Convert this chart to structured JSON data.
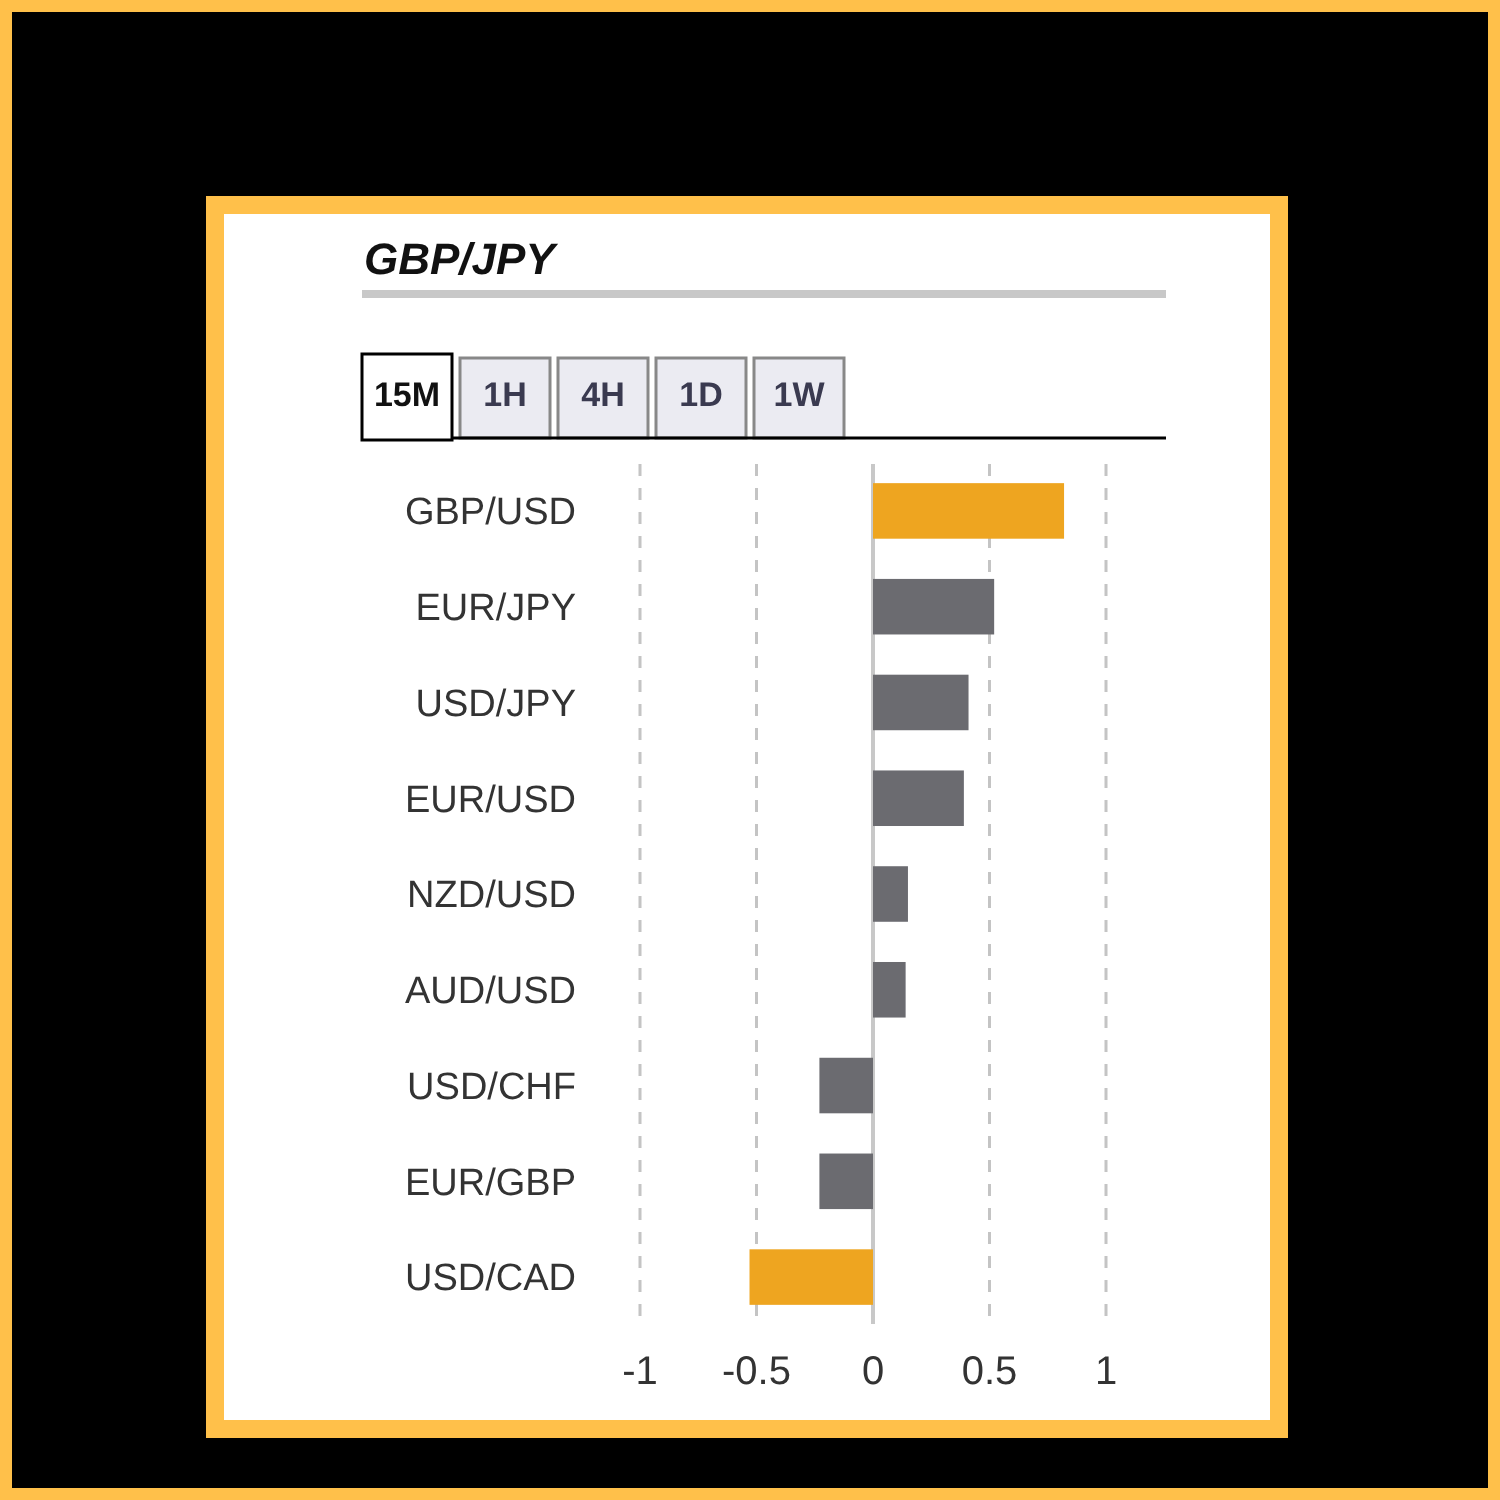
{
  "chart_data": {
    "type": "bar",
    "orientation": "horizontal",
    "title": "GBP/JPY",
    "annotations": [
      "15M",
      "1H",
      "4H",
      "1D",
      "1W"
    ],
    "categories": [
      "GBP/USD",
      "EUR/JPY",
      "USD/JPY",
      "EUR/USD",
      "NZD/USD",
      "AUD/USD",
      "USD/CHF",
      "EUR/GBP",
      "USD/CAD"
    ],
    "values": [
      0.82,
      0.52,
      0.41,
      0.39,
      0.15,
      0.14,
      -0.23,
      -0.23,
      -0.53
    ],
    "colors": [
      "#eea520",
      "#6b6b70",
      "#6b6b70",
      "#6b6b70",
      "#6b6b70",
      "#6b6b70",
      "#6b6b70",
      "#6b6b70",
      "#eea520"
    ],
    "xlim": [
      -1,
      1
    ],
    "xticks": [
      -1,
      -0.5,
      0,
      0.5,
      1
    ],
    "grid": "x"
  }
}
